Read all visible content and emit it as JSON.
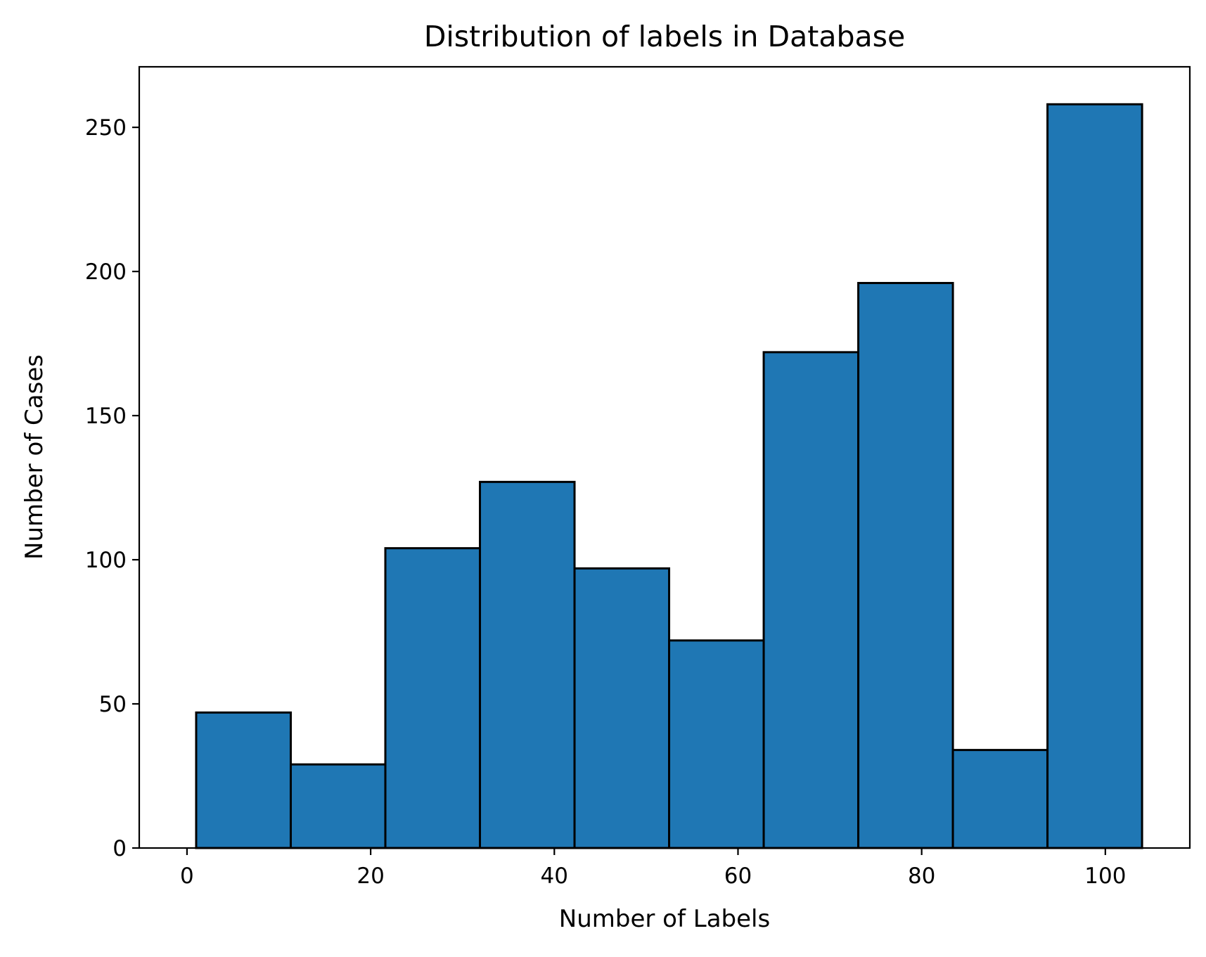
{
  "chart_data": {
    "type": "bar",
    "title": "Distribution of labels in Database",
    "xlabel": "Number of Labels",
    "ylabel": "Number of Cases",
    "xlim": [
      -5.2,
      109.2
    ],
    "ylim": [
      0,
      271
    ],
    "xticks": [
      0,
      20,
      40,
      60,
      80,
      100
    ],
    "yticks": [
      0,
      50,
      100,
      150,
      200,
      250
    ],
    "grid": false,
    "bar_color": "#1f77b4",
    "edge_color": "#000000",
    "bins": [
      {
        "start": 1.0,
        "end": 11.3,
        "value": 47
      },
      {
        "start": 11.3,
        "end": 21.6,
        "value": 29
      },
      {
        "start": 21.6,
        "end": 31.9,
        "value": 104
      },
      {
        "start": 31.9,
        "end": 42.2,
        "value": 127
      },
      {
        "start": 42.2,
        "end": 52.5,
        "value": 97
      },
      {
        "start": 52.5,
        "end": 62.8,
        "value": 72
      },
      {
        "start": 62.8,
        "end": 73.1,
        "value": 172
      },
      {
        "start": 73.1,
        "end": 83.4,
        "value": 196
      },
      {
        "start": 83.4,
        "end": 93.7,
        "value": 34
      },
      {
        "start": 93.7,
        "end": 104.0,
        "value": 258
      }
    ]
  }
}
